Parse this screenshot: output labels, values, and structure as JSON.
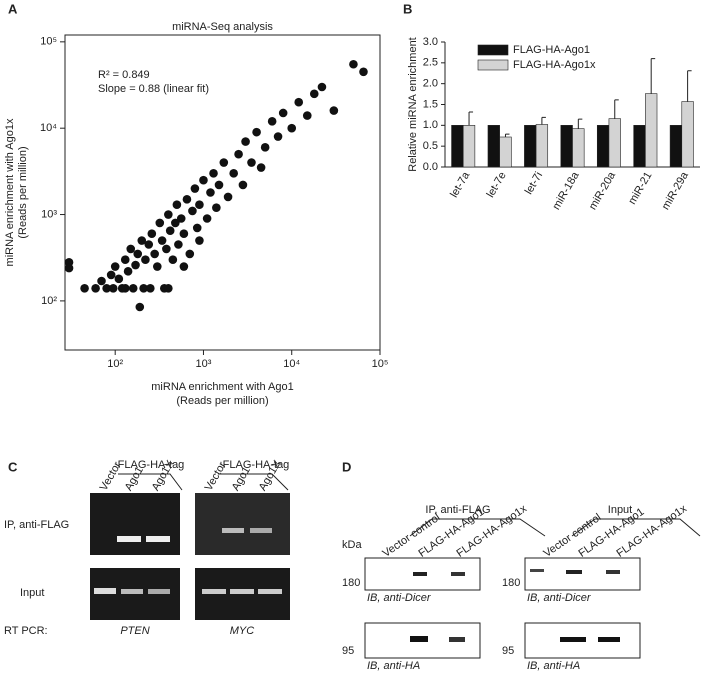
{
  "chart_data": [
    {
      "type": "scatter",
      "panel": "A",
      "title": "miRNA-Seq analysis",
      "xlabel": [
        "miRNA enrichment with Ago1",
        "(Reads per million)"
      ],
      "ylabel": [
        "miRNA enrichment with Ago1x",
        "(Reads per million)"
      ],
      "annotations": [
        "R² = 0.849",
        "Slope = 0.88 (linear fit)"
      ],
      "log_scale": true,
      "color": "#111111",
      "xlim": [
        27,
        100000
      ],
      "ylim": [
        27,
        120000
      ],
      "xticks": [
        {
          "value": 100,
          "label": "10²"
        },
        {
          "value": 1000,
          "label": "10³"
        },
        {
          "value": 10000,
          "label": "10⁴"
        },
        {
          "value": 100000,
          "label": "10⁵"
        }
      ],
      "yticks": [
        {
          "value": 100,
          "label": "10²"
        },
        {
          "value": 1000,
          "label": "10³"
        },
        {
          "value": 10000,
          "label": "10⁴"
        },
        {
          "value": 100000,
          "label": "10⁵"
        }
      ],
      "x": [
        30,
        30,
        45,
        60,
        70,
        80,
        90,
        95,
        100,
        110,
        120,
        130,
        140,
        150,
        160,
        170,
        180,
        190,
        200,
        210,
        220,
        240,
        260,
        280,
        300,
        320,
        340,
        360,
        380,
        400,
        420,
        450,
        480,
        500,
        520,
        560,
        600,
        650,
        700,
        750,
        800,
        850,
        900,
        1000,
        1100,
        1200,
        1300,
        1400,
        1500,
        1700,
        1900,
        2200,
        2500,
        2800,
        3000,
        3500,
        4000,
        4500,
        5000,
        6000,
        7000,
        8000,
        10000,
        12000,
        15000,
        18000,
        22000,
        30000,
        50000,
        65000,
        400,
        600,
        900,
        250,
        130
      ],
      "values": [
        280,
        240,
        140,
        140,
        170,
        140,
        200,
        140,
        250,
        180,
        140,
        300,
        220,
        400,
        140,
        260,
        350,
        85,
        500,
        140,
        300,
        450,
        600,
        350,
        250,
        800,
        500,
        140,
        400,
        1000,
        650,
        300,
        800,
        1300,
        450,
        900,
        600,
        1500,
        350,
        1100,
        2000,
        700,
        1300,
        2500,
        900,
        1800,
        3000,
        1200,
        2200,
        4000,
        1600,
        3000,
        5000,
        2200,
        7000,
        4000,
        9000,
        3500,
        6000,
        12000,
        8000,
        15000,
        10000,
        20000,
        14000,
        25000,
        30000,
        16000,
        55000,
        45000,
        140,
        250,
        500,
        140,
        140
      ]
    },
    {
      "type": "bar",
      "panel": "B",
      "ylabel": "Relative miRNA enrichment",
      "legend": "upper left",
      "categories": [
        "let-7a",
        "let-7e",
        "let-7i",
        "miR-18a",
        "miR-20a",
        "miR-21",
        "miR-29a"
      ],
      "series": [
        {
          "name": "FLAG-HA-Ago1",
          "color": "#111111",
          "values": [
            1,
            1,
            1,
            1,
            1,
            1,
            1
          ]
        },
        {
          "name": "FLAG-HA-Ago1x",
          "color": "#d3d3d3",
          "values": [
            1,
            0.72,
            1.02,
            0.92,
            1.16,
            1.76,
            1.57
          ],
          "errors": [
            0.32,
            0.07,
            0.17,
            0.23,
            0.45,
            0.84,
            0.74
          ]
        }
      ],
      "ylim": [
        0,
        3
      ],
      "yticks": [
        {
          "value": 0,
          "label": "0.0"
        },
        0.5,
        {
          "value": 1,
          "label": "1.0"
        },
        1.5,
        {
          "value": 2,
          "label": "2.0"
        },
        2.5,
        {
          "value": 3,
          "label": "3.0"
        }
      ]
    }
  ],
  "panel_c": {
    "letter": "C",
    "tag": "FLAG-HA-tag",
    "lanes": [
      "Vector",
      "Ago1",
      "Ago1X"
    ],
    "rows": [
      "IP, anti-FLAG",
      "Input"
    ],
    "method": "RT PCR:",
    "genes": [
      "PTEN",
      "MYC"
    ]
  },
  "panel_d": {
    "letter": "D",
    "groups": [
      "IP, anti-FLAG",
      "Input"
    ],
    "lanes": [
      "Vector control",
      "FLAG-HA-Ago1",
      "FLAG-HA-Ago1x"
    ],
    "unit": "kDa",
    "markers": [
      "180",
      "95"
    ],
    "blots": [
      "IB, anti-Dicer",
      "IB, anti-HA"
    ]
  }
}
